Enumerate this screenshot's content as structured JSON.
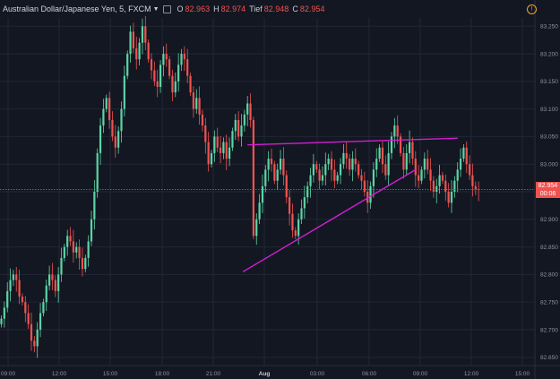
{
  "header": {
    "symbol": "Australian Dollar/Japanese Yen, 5, FXCM",
    "open_label": "O",
    "open_value": "82.963",
    "high_label": "H",
    "high_value": "82.974",
    "low_label": "Tief",
    "low_value": "82.948",
    "close_label": "C",
    "close_value": "82.954"
  },
  "settings_icon": "exclamation-icon",
  "price_tag": {
    "price": "82.954",
    "countdown": "00:06"
  },
  "colors": {
    "bull": "#5dd4a5",
    "bear": "#ef5350",
    "trendline": "#d21fd2",
    "bg": "#131722",
    "grid": "#232735"
  },
  "chart_data": {
    "type": "candlestick",
    "y_tick_labels": [
      "83.250",
      "83.200",
      "83.150",
      "83.100",
      "83.050",
      "83.000",
      "82.950",
      "82.900",
      "82.850",
      "82.800",
      "82.750",
      "82.700",
      "82.650"
    ],
    "y_ticks": [
      83.25,
      83.2,
      83.15,
      83.1,
      83.05,
      83.0,
      82.95,
      82.9,
      82.85,
      82.8,
      82.75,
      82.7,
      82.65
    ],
    "ylim": [
      82.635,
      83.265
    ],
    "x_tick_labels": [
      "09:00",
      "12:00",
      "15:00",
      "18:00",
      "21:00",
      "Aug",
      "03:00",
      "06:00",
      "09:00",
      "12:00",
      "15:00"
    ],
    "last_price": 82.954,
    "candles_close": [
      82.72,
      82.74,
      82.77,
      82.79,
      82.8,
      82.79,
      82.76,
      82.75,
      82.73,
      82.71,
      82.68,
      82.67,
      82.7,
      82.73,
      82.75,
      82.78,
      82.8,
      82.79,
      82.77,
      82.8,
      82.83,
      82.85,
      82.87,
      82.86,
      82.84,
      82.85,
      82.83,
      82.81,
      82.83,
      82.86,
      82.9,
      82.95,
      83.02,
      83.07,
      83.1,
      83.12,
      83.08,
      83.05,
      83.03,
      83.06,
      83.1,
      83.16,
      83.2,
      83.24,
      83.21,
      83.19,
      83.22,
      83.25,
      83.22,
      83.19,
      83.17,
      83.15,
      83.14,
      83.18,
      83.2,
      83.19,
      83.16,
      83.13,
      83.15,
      83.18,
      83.2,
      83.19,
      83.16,
      83.13,
      83.1,
      83.12,
      83.09,
      83.07,
      83.04,
      83.0,
      83.02,
      83.05,
      83.03,
      83.02,
      83.04,
      83.01,
      83.03,
      83.06,
      83.08,
      83.05,
      83.07,
      83.09,
      83.11,
      83.08,
      82.87,
      82.9,
      82.93,
      82.96,
      82.99,
      83.01,
      83.0,
      82.97,
      82.99,
      83.01,
      82.98,
      82.94,
      82.91,
      82.88,
      82.87,
      82.9,
      82.92,
      82.94,
      82.96,
      82.98,
      83.0,
      82.99,
      82.97,
      82.98,
      83.0,
      83.01,
      82.99,
      82.97,
      82.98,
      83.0,
      83.02,
      83.01,
      82.99,
      83.01,
      83.0,
      82.98,
      82.97,
      82.95,
      82.93,
      82.96,
      82.99,
      83.01,
      83.03,
      83.0,
      82.98,
      83.02,
      83.05,
      83.07,
      83.05,
      83.02,
      82.99,
      83.02,
      83.04,
      83.01,
      82.98,
      82.97,
      82.99,
      83.01,
      82.99,
      82.97,
      82.95,
      82.96,
      82.98,
      82.97,
      82.95,
      82.93,
      82.95,
      82.97,
      82.99,
      83.01,
      83.03,
      83.0,
      82.98,
      82.96,
      82.955,
      82.954
    ]
  },
  "trendlines": [
    {
      "name": "upper-resistance-line",
      "from": [
        82.0,
        83.035
      ],
      "to": [
        152.0,
        83.047
      ]
    },
    {
      "name": "lower-support-line",
      "from": [
        80.5,
        82.805
      ],
      "to": [
        138.0,
        82.99
      ]
    }
  ]
}
